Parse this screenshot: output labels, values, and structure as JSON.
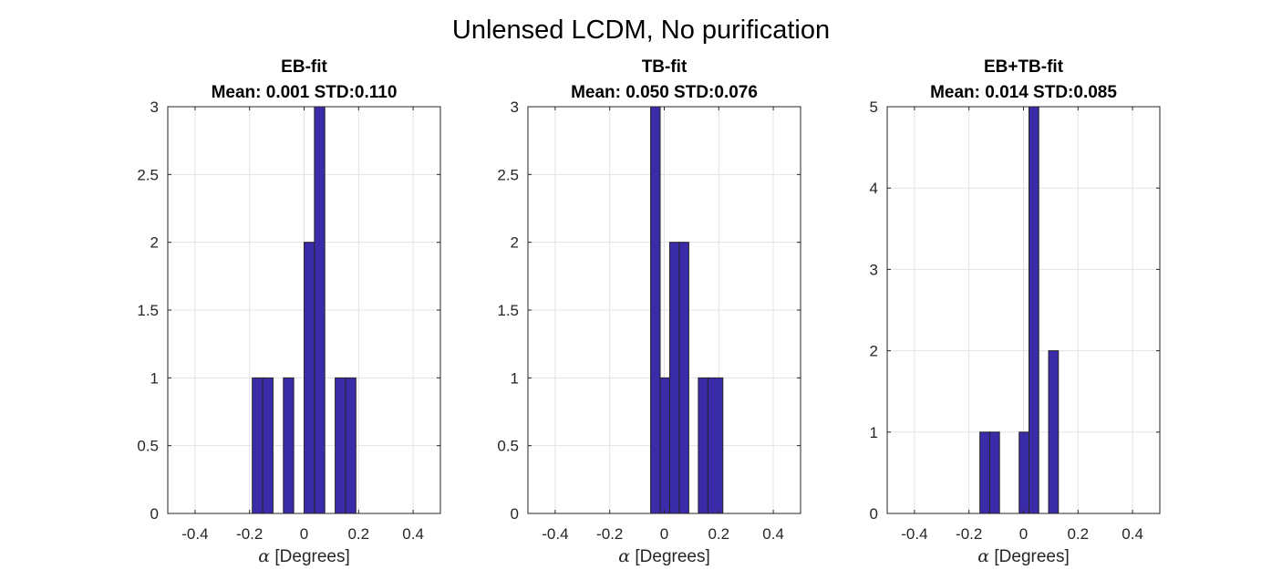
{
  "figure_title": "Unlensed LCDM, No purification",
  "chart_data": [
    {
      "type": "bar",
      "title": "EB-fit",
      "subtitle": "Mean: 0.001 STD:0.110",
      "xlabel_symbol": "α",
      "xlabel": " [Degrees]",
      "ylabel": "",
      "xlim": [
        -0.5,
        0.5
      ],
      "ylim": [
        0,
        3
      ],
      "xticks": [
        -0.4,
        -0.2,
        0,
        0.2,
        0.4
      ],
      "yticks": [
        0,
        0.5,
        1,
        1.5,
        2,
        2.5,
        3
      ],
      "xtick_labels": [
        "-0.4",
        "-0.2",
        "0",
        "0.2",
        "0.4"
      ],
      "ytick_labels": [
        "0",
        "0.5",
        "1",
        "1.5",
        "2",
        "2.5",
        "3"
      ],
      "grid": true,
      "bins": [
        {
          "x0": -0.19,
          "x1": -0.152,
          "count": 1
        },
        {
          "x0": -0.152,
          "x1": -0.114,
          "count": 1
        },
        {
          "x0": -0.076,
          "x1": -0.038,
          "count": 1
        },
        {
          "x0": 0.0,
          "x1": 0.038,
          "count": 2
        },
        {
          "x0": 0.038,
          "x1": 0.076,
          "count": 3
        },
        {
          "x0": 0.114,
          "x1": 0.152,
          "count": 1
        },
        {
          "x0": 0.152,
          "x1": 0.19,
          "count": 1
        }
      ]
    },
    {
      "type": "bar",
      "title": "TB-fit",
      "subtitle": "Mean: 0.050 STD:0.076",
      "xlabel_symbol": "α",
      "xlabel": " [Degrees]",
      "ylabel": "",
      "xlim": [
        -0.5,
        0.5
      ],
      "ylim": [
        0,
        3
      ],
      "xticks": [
        -0.4,
        -0.2,
        0,
        0.2,
        0.4
      ],
      "yticks": [
        0,
        0.5,
        1,
        1.5,
        2,
        2.5,
        3
      ],
      "xtick_labels": [
        "-0.4",
        "-0.2",
        "0",
        "0.2",
        "0.4"
      ],
      "ytick_labels": [
        "0",
        "0.5",
        "1",
        "1.5",
        "2",
        "2.5",
        "3"
      ],
      "grid": true,
      "bins": [
        {
          "x0": -0.05,
          "x1": -0.015,
          "count": 3
        },
        {
          "x0": -0.015,
          "x1": 0.02,
          "count": 1
        },
        {
          "x0": 0.02,
          "x1": 0.055,
          "count": 2
        },
        {
          "x0": 0.055,
          "x1": 0.09,
          "count": 2
        },
        {
          "x0": 0.125,
          "x1": 0.16,
          "count": 1
        },
        {
          "x0": 0.16,
          "x1": 0.215,
          "count": 1
        }
      ]
    },
    {
      "type": "bar",
      "title": "EB+TB-fit",
      "subtitle": "Mean: 0.014 STD:0.085",
      "xlabel_symbol": "α",
      "xlabel": " [Degrees]",
      "ylabel": "",
      "xlim": [
        -0.5,
        0.5
      ],
      "ylim": [
        0,
        5
      ],
      "xticks": [
        -0.4,
        -0.2,
        0,
        0.2,
        0.4
      ],
      "yticks": [
        0,
        1,
        2,
        3,
        4,
        5
      ],
      "xtick_labels": [
        "-0.4",
        "-0.2",
        "0",
        "0.2",
        "0.4"
      ],
      "ytick_labels": [
        "0",
        "1",
        "2",
        "3",
        "4",
        "5"
      ],
      "grid": true,
      "bins": [
        {
          "x0": -0.16,
          "x1": -0.124,
          "count": 1
        },
        {
          "x0": -0.124,
          "x1": -0.088,
          "count": 1
        },
        {
          "x0": -0.016,
          "x1": 0.02,
          "count": 1
        },
        {
          "x0": 0.02,
          "x1": 0.056,
          "count": 5
        },
        {
          "x0": 0.092,
          "x1": 0.128,
          "count": 2
        }
      ]
    }
  ],
  "colors": {
    "bar_fill": "#3a2ba8",
    "bar_edge": "#262626",
    "grid": "#e3e3e3",
    "axes": "#262626"
  }
}
